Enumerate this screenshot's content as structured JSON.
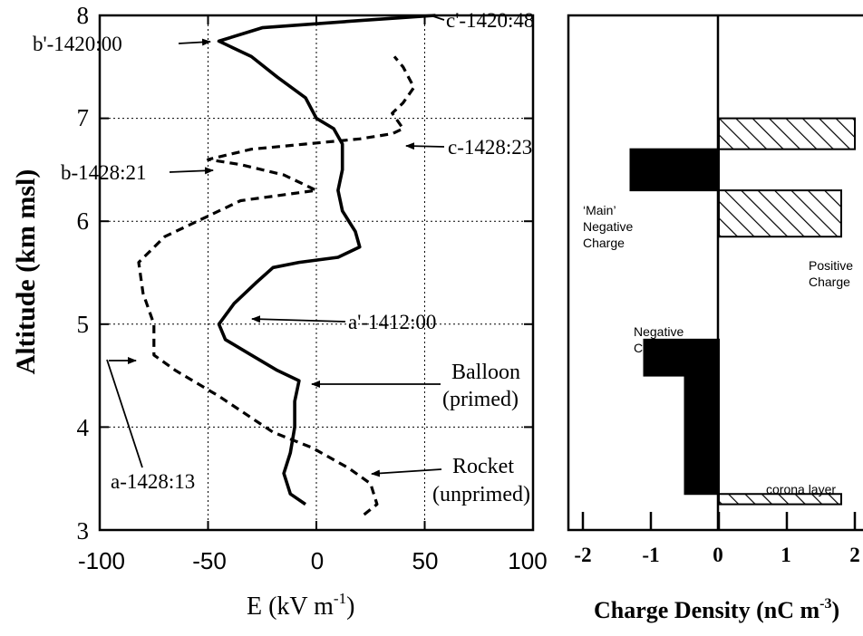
{
  "left_panel": {
    "xlabel": "E (kV m",
    "xlabel_sup": "-1",
    "xlabel_end": ")",
    "ylabel": "Altitude (km msl)",
    "x_tick_labels": [
      "-100",
      "-50",
      "0",
      "50",
      "100"
    ],
    "y_tick_labels": [
      "3",
      "4",
      "5",
      "6",
      "7",
      "8"
    ],
    "annotations": {
      "c_prime": "c'-1420:48",
      "b_prime": "b'-1420:00",
      "c": "c-1428:23",
      "b": "b-1428:21",
      "a_prime": "a'-1412:00",
      "balloon_1": "Balloon",
      "balloon_2": "(primed)",
      "rocket_1": "Rocket",
      "rocket_2": "(unprimed)",
      "a": "a-1428:13"
    }
  },
  "right_panel": {
    "xlabel": "Charge Density (nC m",
    "xlabel_sup": "-3",
    "xlabel_end": ")",
    "x_tick_labels": [
      "-2",
      "-1",
      "0",
      "1",
      "2"
    ],
    "annotations": {
      "main_neg_1": "‘Main’",
      "main_neg_2": "Negative",
      "main_neg_3": "Charge",
      "pos_1": "Positive",
      "pos_2": "Charge",
      "neg_1": "Negative",
      "neg_2": "Charge",
      "corona": "corona layer"
    }
  },
  "chart_data": [
    {
      "type": "line",
      "xlabel": "E (kV m-1)",
      "ylabel": "Altitude (km msl)",
      "xlim": [
        -100,
        100
      ],
      "ylim": [
        3,
        8
      ],
      "grid": true,
      "series": [
        {
          "name": "Balloon (primed)",
          "style": "solid",
          "points": [
            [
              -5,
              3.25
            ],
            [
              -12,
              3.35
            ],
            [
              -15,
              3.55
            ],
            [
              -12,
              3.75
            ],
            [
              -10,
              4.0
            ],
            [
              -10,
              4.25
            ],
            [
              -8,
              4.45
            ],
            [
              -18,
              4.55
            ],
            [
              -30,
              4.7
            ],
            [
              -42,
              4.85
            ],
            [
              -45,
              5.0
            ],
            [
              -38,
              5.2
            ],
            [
              -28,
              5.4
            ],
            [
              -20,
              5.55
            ],
            [
              -8,
              5.6
            ],
            [
              10,
              5.65
            ],
            [
              20,
              5.75
            ],
            [
              18,
              5.9
            ],
            [
              12,
              6.1
            ],
            [
              10,
              6.3
            ],
            [
              12,
              6.5
            ],
            [
              12,
              6.75
            ],
            [
              8,
              6.9
            ],
            [
              0,
              7.0
            ],
            [
              -5,
              7.2
            ],
            [
              -18,
              7.4
            ],
            [
              -30,
              7.6
            ],
            [
              -45,
              7.75
            ],
            [
              -25,
              7.88
            ],
            [
              20,
              7.95
            ],
            [
              55,
              8.0
            ]
          ]
        },
        {
          "name": "Rocket (unprimed)",
          "style": "dashed",
          "points": [
            [
              22,
              3.15
            ],
            [
              28,
              3.25
            ],
            [
              25,
              3.45
            ],
            [
              15,
              3.6
            ],
            [
              -2,
              3.8
            ],
            [
              -20,
              3.95
            ],
            [
              -45,
              4.3
            ],
            [
              -65,
              4.55
            ],
            [
              -75,
              4.7
            ],
            [
              -75,
              5.0
            ],
            [
              -80,
              5.3
            ],
            [
              -82,
              5.6
            ],
            [
              -70,
              5.85
            ],
            [
              -55,
              6.0
            ],
            [
              -35,
              6.2
            ],
            [
              0,
              6.3
            ],
            [
              -15,
              6.45
            ],
            [
              -35,
              6.55
            ],
            [
              -50,
              6.6
            ],
            [
              -30,
              6.7
            ],
            [
              -5,
              6.75
            ],
            [
              20,
              6.8
            ],
            [
              35,
              6.85
            ],
            [
              40,
              6.9
            ],
            [
              35,
              7.05
            ],
            [
              40,
              7.15
            ],
            [
              45,
              7.3
            ],
            [
              40,
              7.5
            ],
            [
              36,
              7.6
            ]
          ]
        }
      ]
    },
    {
      "type": "bar",
      "orientation": "horizontal",
      "xlabel": "Charge Density (nC m-3)",
      "xlim": [
        -2,
        2
      ],
      "bars": [
        {
          "label": "Positive Charge",
          "value": 2.0,
          "alt_range": [
            6.7,
            7.0
          ],
          "fill": "hatched"
        },
        {
          "label": "‘Main’ Negative Charge",
          "value": -1.3,
          "alt_range": [
            6.3,
            6.7
          ],
          "fill": "solid"
        },
        {
          "label": "Positive Charge",
          "value": 1.8,
          "alt_range": [
            5.85,
            6.3
          ],
          "fill": "hatched"
        },
        {
          "label": "Negative Charge",
          "value": -1.1,
          "alt_range": [
            4.5,
            4.85
          ],
          "fill": "solid"
        },
        {
          "label": "Negative Charge",
          "value": -0.5,
          "alt_range": [
            3.35,
            4.5
          ],
          "fill": "solid"
        },
        {
          "label": "corona layer",
          "value": 1.8,
          "alt_range": [
            3.25,
            3.35
          ],
          "fill": "hatched"
        }
      ]
    }
  ]
}
